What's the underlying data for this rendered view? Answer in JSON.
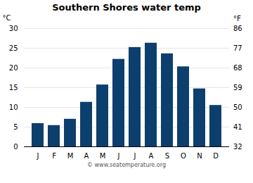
{
  "chart_data": {
    "type": "bar",
    "title": "Southern Shores water temp",
    "categories": [
      "J",
      "F",
      "M",
      "A",
      "M",
      "J",
      "J",
      "A",
      "S",
      "O",
      "N",
      "D"
    ],
    "values": [
      5.9,
      5.4,
      7.0,
      11.3,
      15.7,
      22.2,
      25.2,
      26.3,
      23.6,
      20.3,
      14.7,
      10.5
    ],
    "color": "#0d3f6e",
    "ylabel": "°C",
    "ylim": [
      0,
      30
    ],
    "yticks": [
      0,
      5,
      10,
      15,
      20,
      25,
      30
    ],
    "y2label": "°F",
    "y2lim": [
      32,
      86
    ],
    "y2ticks": [
      32,
      41,
      50,
      59,
      68,
      77,
      86
    ],
    "grid": true,
    "annotations": [
      "© www.seatemperature.org"
    ]
  }
}
